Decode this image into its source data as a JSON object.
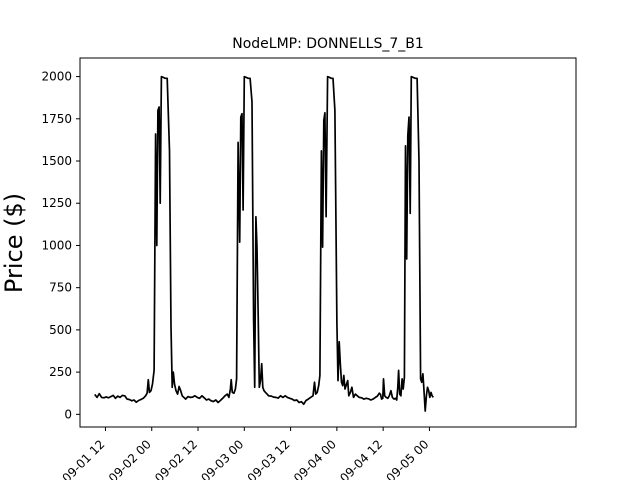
{
  "chart_data": {
    "type": "line",
    "title": "NodeLMP: DONNELLS_7_B1",
    "xlabel": "",
    "ylabel": "Price ($)",
    "xlim_hours_from_09_01_00": [
      5.4,
      134
    ],
    "ylim": [
      -75,
      2110
    ],
    "grid": false,
    "line_color": "#000000",
    "x_ticks": [
      {
        "label": "09-01 12",
        "hour": 12
      },
      {
        "label": "09-02 00",
        "hour": 24
      },
      {
        "label": "09-02 12",
        "hour": 36
      },
      {
        "label": "09-03 00",
        "hour": 48
      },
      {
        "label": "09-03 12",
        "hour": 60
      },
      {
        "label": "09-04 00",
        "hour": 72
      },
      {
        "label": "09-04 12",
        "hour": 84
      },
      {
        "label": "09-05 00",
        "hour": 96
      }
    ],
    "y_ticks": [
      0,
      250,
      500,
      750,
      1000,
      1250,
      1500,
      1750,
      2000
    ],
    "series": [
      {
        "points": [
          [
            9.2,
            118
          ],
          [
            9.8,
            100
          ],
          [
            10.4,
            122
          ],
          [
            11.0,
            100
          ],
          [
            11.6,
            98
          ],
          [
            12.2,
            103
          ],
          [
            12.8,
            98
          ],
          [
            13.4,
            105
          ],
          [
            14.0,
            112
          ],
          [
            14.6,
            95
          ],
          [
            15.2,
            108
          ],
          [
            15.8,
            100
          ],
          [
            16.4,
            112
          ],
          [
            17.0,
            110
          ],
          [
            17.6,
            90
          ],
          [
            18.2,
            88
          ],
          [
            18.8,
            80
          ],
          [
            19.4,
            85
          ],
          [
            20.0,
            72
          ],
          [
            20.6,
            82
          ],
          [
            21.2,
            88
          ],
          [
            21.8,
            95
          ],
          [
            22.4,
            110
          ],
          [
            22.8,
            125
          ],
          [
            23.1,
            205
          ],
          [
            23.4,
            130
          ],
          [
            23.8,
            140
          ],
          [
            24.2,
            180
          ],
          [
            24.6,
            260
          ],
          [
            25.0,
            1660
          ],
          [
            25.3,
            1000
          ],
          [
            25.6,
            1800
          ],
          [
            25.9,
            1820
          ],
          [
            26.2,
            1250
          ],
          [
            26.5,
            2000
          ],
          [
            27.0,
            1995
          ],
          [
            27.5,
            1990
          ],
          [
            28.0,
            1990
          ],
          [
            28.6,
            1560
          ],
          [
            29.0,
            520
          ],
          [
            29.3,
            160
          ],
          [
            29.6,
            250
          ],
          [
            29.9,
            180
          ],
          [
            30.3,
            140
          ],
          [
            30.7,
            120
          ],
          [
            31.1,
            165
          ],
          [
            31.5,
            140
          ],
          [
            31.9,
            110
          ],
          [
            32.3,
            100
          ],
          [
            32.8,
            90
          ],
          [
            33.4,
            105
          ],
          [
            34.0,
            100
          ],
          [
            34.6,
            102
          ],
          [
            35.2,
            110
          ],
          [
            35.8,
            100
          ],
          [
            36.4,
            95
          ],
          [
            37.0,
            110
          ],
          [
            37.6,
            98
          ],
          [
            38.2,
            85
          ],
          [
            38.8,
            90
          ],
          [
            39.4,
            80
          ],
          [
            40.0,
            76
          ],
          [
            40.6,
            85
          ],
          [
            41.2,
            70
          ],
          [
            41.8,
            82
          ],
          [
            42.4,
            95
          ],
          [
            43.0,
            110
          ],
          [
            43.6,
            120
          ],
          [
            44.0,
            100
          ],
          [
            44.4,
            150
          ],
          [
            44.6,
            205
          ],
          [
            44.9,
            130
          ],
          [
            45.3,
            125
          ],
          [
            45.7,
            150
          ],
          [
            46.0,
            210
          ],
          [
            46.4,
            1610
          ],
          [
            46.8,
            1020
          ],
          [
            47.1,
            1760
          ],
          [
            47.4,
            1780
          ],
          [
            47.7,
            1210
          ],
          [
            48.0,
            2000
          ],
          [
            48.5,
            1995
          ],
          [
            49.0,
            1990
          ],
          [
            49.5,
            1990
          ],
          [
            50.0,
            1850
          ],
          [
            50.4,
            560
          ],
          [
            50.7,
            160
          ],
          [
            51.0,
            1170
          ],
          [
            51.3,
            990
          ],
          [
            51.6,
            580
          ],
          [
            51.9,
            160
          ],
          [
            52.2,
            200
          ],
          [
            52.5,
            300
          ],
          [
            52.8,
            160
          ],
          [
            53.1,
            140
          ],
          [
            53.5,
            130
          ],
          [
            53.9,
            120
          ],
          [
            54.3,
            110
          ],
          [
            55.0,
            108
          ],
          [
            55.6,
            102
          ],
          [
            56.2,
            100
          ],
          [
            56.8,
            96
          ],
          [
            57.4,
            110
          ],
          [
            58.0,
            100
          ],
          [
            58.6,
            110
          ],
          [
            59.2,
            100
          ],
          [
            59.8,
            95
          ],
          [
            60.4,
            90
          ],
          [
            61.0,
            82
          ],
          [
            61.6,
            85
          ],
          [
            62.2,
            70
          ],
          [
            62.8,
            75
          ],
          [
            63.4,
            60
          ],
          [
            64.0,
            82
          ],
          [
            64.6,
            90
          ],
          [
            65.2,
            100
          ],
          [
            65.8,
            110
          ],
          [
            66.2,
            190
          ],
          [
            66.5,
            120
          ],
          [
            66.9,
            130
          ],
          [
            67.3,
            170
          ],
          [
            67.6,
            230
          ],
          [
            68.0,
            1560
          ],
          [
            68.3,
            990
          ],
          [
            68.6,
            1740
          ],
          [
            68.9,
            1785
          ],
          [
            69.2,
            1170
          ],
          [
            69.6,
            2000
          ],
          [
            70.1,
            1995
          ],
          [
            70.5,
            1990
          ],
          [
            71.0,
            1990
          ],
          [
            71.5,
            1800
          ],
          [
            72.0,
            540
          ],
          [
            72.3,
            200
          ],
          [
            72.6,
            430
          ],
          [
            72.9,
            300
          ],
          [
            73.2,
            190
          ],
          [
            73.5,
            170
          ],
          [
            73.8,
            230
          ],
          [
            74.1,
            150
          ],
          [
            74.4,
            170
          ],
          [
            74.8,
            200
          ],
          [
            75.1,
            110
          ],
          [
            75.5,
            130
          ],
          [
            75.9,
            160
          ],
          [
            76.3,
            100
          ],
          [
            76.8,
            120
          ],
          [
            77.3,
            110
          ],
          [
            77.8,
            100
          ],
          [
            78.4,
            98
          ],
          [
            79.0,
            90
          ],
          [
            79.6,
            95
          ],
          [
            80.2,
            92
          ],
          [
            80.8,
            85
          ],
          [
            81.4,
            90
          ],
          [
            82.0,
            100
          ],
          [
            82.5,
            108
          ],
          [
            83.0,
            125
          ],
          [
            83.3,
            118
          ],
          [
            83.6,
            90
          ],
          [
            83.9,
            95
          ],
          [
            84.1,
            210
          ],
          [
            84.4,
            110
          ],
          [
            84.8,
            100
          ],
          [
            85.2,
            95
          ],
          [
            85.6,
            110
          ],
          [
            86.0,
            140
          ],
          [
            86.4,
            100
          ],
          [
            86.8,
            90
          ],
          [
            87.2,
            95
          ],
          [
            87.5,
            85
          ],
          [
            87.8,
            160
          ],
          [
            88.0,
            260
          ],
          [
            88.3,
            120
          ],
          [
            88.6,
            110
          ],
          [
            88.9,
            210
          ],
          [
            89.2,
            150
          ],
          [
            89.5,
            220
          ],
          [
            89.8,
            1590
          ],
          [
            90.1,
            920
          ],
          [
            90.4,
            1650
          ],
          [
            90.7,
            1760
          ],
          [
            91.0,
            1190
          ],
          [
            91.3,
            2000
          ],
          [
            91.8,
            1995
          ],
          [
            92.3,
            1990
          ],
          [
            92.8,
            1990
          ],
          [
            93.3,
            1500
          ],
          [
            93.7,
            210
          ],
          [
            94.0,
            190
          ],
          [
            94.3,
            240
          ],
          [
            94.6,
            140
          ],
          [
            94.9,
            20
          ],
          [
            95.2,
            110
          ],
          [
            95.5,
            160
          ],
          [
            95.8,
            140
          ],
          [
            96.1,
            100
          ],
          [
            96.4,
            130
          ],
          [
            96.7,
            110
          ],
          [
            97.0,
            100
          ]
        ]
      }
    ]
  }
}
